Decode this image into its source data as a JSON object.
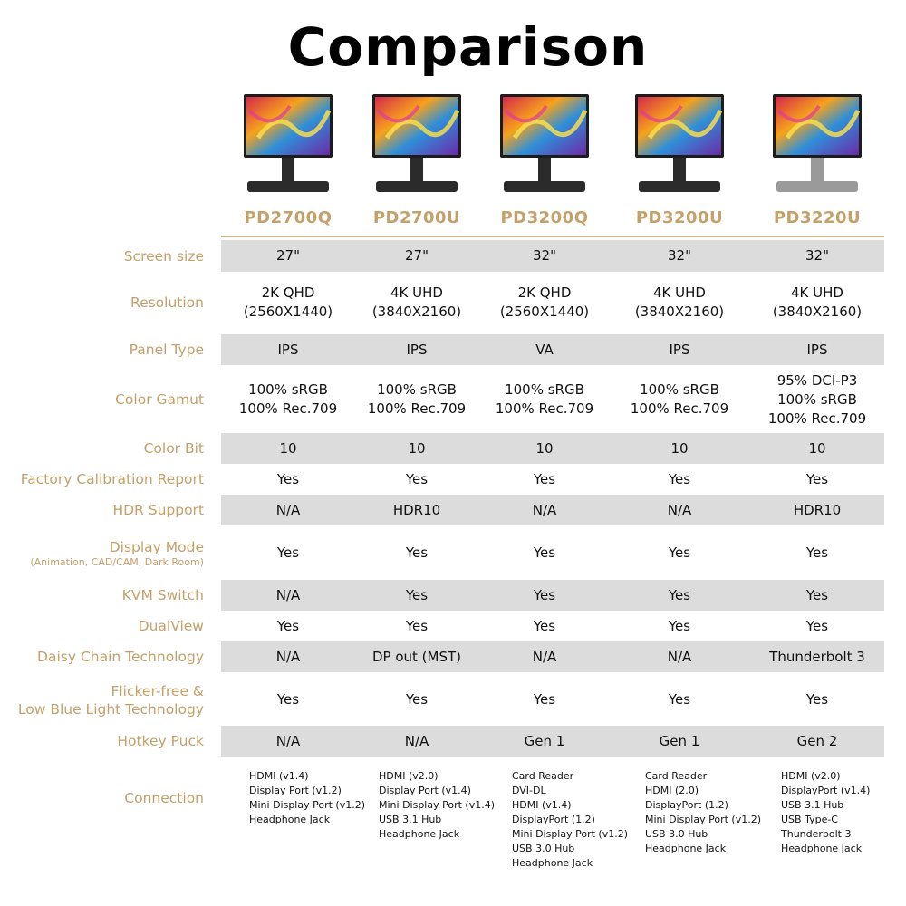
{
  "title": "Comparison",
  "models": [
    "PD2700Q",
    "PD2700U",
    "PD3200Q",
    "PD3200U",
    "PD3220U"
  ],
  "rows": [
    {
      "label": "Screen size",
      "sub": "",
      "values": [
        [
          "27\""
        ],
        [
          "27\""
        ],
        [
          "32\""
        ],
        [
          "32\""
        ],
        [
          "32\""
        ]
      ]
    },
    {
      "label": "Resolution",
      "sub": "",
      "values": [
        [
          "2K QHD",
          "(2560X1440)"
        ],
        [
          "4K UHD",
          "(3840X2160)"
        ],
        [
          "2K QHD",
          "(2560X1440)"
        ],
        [
          "4K UHD",
          "(3840X2160)"
        ],
        [
          "4K UHD",
          "(3840X2160)"
        ]
      ]
    },
    {
      "label": "Panel Type",
      "sub": "",
      "values": [
        [
          "IPS"
        ],
        [
          "IPS"
        ],
        [
          "VA"
        ],
        [
          "IPS"
        ],
        [
          "IPS"
        ]
      ]
    },
    {
      "label": "Color Gamut",
      "sub": "",
      "values": [
        [
          "100% sRGB",
          "100% Rec.709"
        ],
        [
          "100% sRGB",
          "100% Rec.709"
        ],
        [
          "100% sRGB",
          "100% Rec.709"
        ],
        [
          "100% sRGB",
          "100% Rec.709"
        ],
        [
          "95% DCI-P3",
          "100% sRGB",
          "100% Rec.709"
        ]
      ]
    },
    {
      "label": "Color Bit",
      "sub": "",
      "values": [
        [
          "10"
        ],
        [
          "10"
        ],
        [
          "10"
        ],
        [
          "10"
        ],
        [
          "10"
        ]
      ]
    },
    {
      "label": "Factory Calibration Report",
      "sub": "",
      "values": [
        [
          "Yes"
        ],
        [
          "Yes"
        ],
        [
          "Yes"
        ],
        [
          "Yes"
        ],
        [
          "Yes"
        ]
      ]
    },
    {
      "label": "HDR Support",
      "sub": "",
      "values": [
        [
          "N/A"
        ],
        [
          "HDR10"
        ],
        [
          "N/A"
        ],
        [
          "N/A"
        ],
        [
          "HDR10"
        ]
      ]
    },
    {
      "label": "Display Mode",
      "sub": "(Animation, CAD/CAM, Dark Room)",
      "values": [
        [
          "Yes"
        ],
        [
          "Yes"
        ],
        [
          "Yes"
        ],
        [
          "Yes"
        ],
        [
          "Yes"
        ]
      ]
    },
    {
      "label": "KVM Switch",
      "sub": "",
      "values": [
        [
          "N/A"
        ],
        [
          "Yes"
        ],
        [
          "Yes"
        ],
        [
          "Yes"
        ],
        [
          "Yes"
        ]
      ]
    },
    {
      "label": "DualView",
      "sub": "",
      "values": [
        [
          "Yes"
        ],
        [
          "Yes"
        ],
        [
          "Yes"
        ],
        [
          "Yes"
        ],
        [
          "Yes"
        ]
      ]
    },
    {
      "label": "Daisy Chain Technology",
      "sub": "",
      "values": [
        [
          "N/A"
        ],
        [
          "DP out (MST)"
        ],
        [
          "N/A"
        ],
        [
          "N/A"
        ],
        [
          "Thunderbolt 3"
        ]
      ]
    },
    {
      "label": "Flicker-free &",
      "label2": "Low Blue Light Technology",
      "sub": "",
      "values": [
        [
          "Yes"
        ],
        [
          "Yes"
        ],
        [
          "Yes"
        ],
        [
          "Yes"
        ],
        [
          "Yes"
        ]
      ]
    },
    {
      "label": "Hotkey Puck",
      "sub": "",
      "values": [
        [
          "N/A"
        ],
        [
          "N/A"
        ],
        [
          "Gen 1"
        ],
        [
          "Gen 1"
        ],
        [
          "Gen 2"
        ]
      ]
    }
  ],
  "connection": {
    "label": "Connection",
    "values": [
      [
        "HDMI (v1.4)",
        "Display Port (v1.2)",
        "Mini Display Port (v1.2)",
        "Headphone Jack"
      ],
      [
        "HDMI (v2.0)",
        "Display Port (v1.4)",
        "Mini Display Port (v1.4)",
        "USB 3.1 Hub",
        "Headphone Jack"
      ],
      [
        "Card Reader",
        "DVI-DL",
        "HDMI (v1.4)",
        "DisplayPort (1.2)",
        "Mini Display Port (v1.2)",
        "USB 3.0 Hub",
        "Headphone Jack"
      ],
      [
        "Card Reader",
        "HDMI (2.0)",
        "DisplayPort (1.2)",
        "Mini Display Port (v1.2)",
        "USB 3.0 Hub",
        "Headphone Jack"
      ],
      [
        "HDMI (v2.0)",
        "DisplayPort (v1.4)",
        "USB 3.1 Hub",
        "USB Type-C",
        "Thunderbolt 3",
        "Headphone Jack"
      ]
    ]
  },
  "colors": {
    "accent": "#c4a06a",
    "band": "#dcdcdc"
  },
  "icons": [
    "monitor-icon"
  ]
}
